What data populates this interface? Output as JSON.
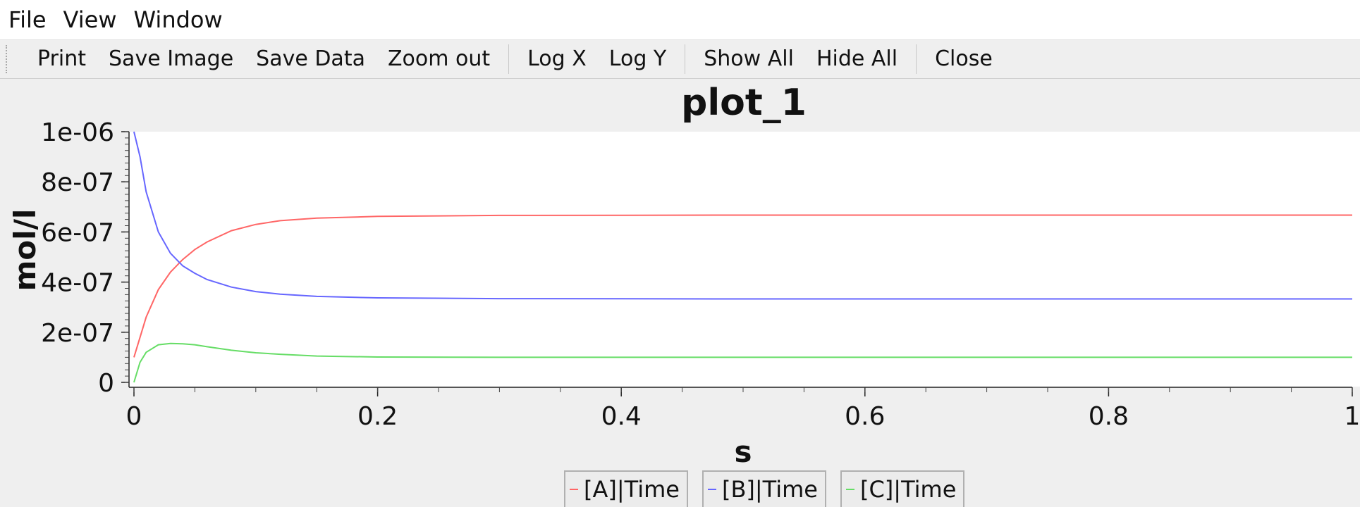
{
  "menu": {
    "items": [
      "File",
      "View",
      "Window"
    ]
  },
  "toolbar": {
    "print": "Print",
    "save_image": "Save Image",
    "save_data": "Save Data",
    "zoom_out": "Zoom out",
    "log_x": "Log X",
    "log_y": "Log Y",
    "show_all": "Show All",
    "hide_all": "Hide All",
    "close": "Close"
  },
  "chart_data": {
    "type": "line",
    "title": "plot_1",
    "xlabel": "s",
    "ylabel": "mol/l",
    "xlim": [
      0,
      1
    ],
    "ylim": [
      0,
      1e-06
    ],
    "x_ticks": [
      "0",
      "0.2",
      "0.4",
      "0.6",
      "0.8",
      "1"
    ],
    "y_ticks": [
      "0",
      "2e-07",
      "4e-07",
      "6e-07",
      "8e-07",
      "1e-06"
    ],
    "grid": false,
    "legend_position": "bottom",
    "series": [
      {
        "name": "[A]|Time",
        "color": "#ff6666",
        "x": [
          0,
          0.01,
          0.02,
          0.03,
          0.04,
          0.05,
          0.06,
          0.08,
          0.1,
          0.12,
          0.15,
          0.2,
          0.3,
          0.5,
          0.7,
          1.0
        ],
        "y": [
          1e-07,
          2.6e-07,
          3.7e-07,
          4.4e-07,
          4.9e-07,
          5.3e-07,
          5.6e-07,
          6.05e-07,
          6.3e-07,
          6.45e-07,
          6.55e-07,
          6.62e-07,
          6.66e-07,
          6.67e-07,
          6.67e-07,
          6.67e-07
        ]
      },
      {
        "name": "[B]|Time",
        "color": "#6666ff",
        "x": [
          0,
          0.005,
          0.01,
          0.02,
          0.03,
          0.04,
          0.05,
          0.06,
          0.08,
          0.1,
          0.12,
          0.15,
          0.2,
          0.3,
          0.5,
          0.7,
          1.0
        ],
        "y": [
          1e-06,
          9e-07,
          7.6e-07,
          6e-07,
          5.15e-07,
          4.65e-07,
          4.35e-07,
          4.1e-07,
          3.8e-07,
          3.62e-07,
          3.52e-07,
          3.43e-07,
          3.37e-07,
          3.34e-07,
          3.33e-07,
          3.33e-07,
          3.33e-07
        ]
      },
      {
        "name": "[C]|Time",
        "color": "#66dd66",
        "x": [
          0,
          0.005,
          0.01,
          0.02,
          0.03,
          0.04,
          0.05,
          0.06,
          0.08,
          0.1,
          0.12,
          0.15,
          0.2,
          0.3,
          0.5,
          1.0
        ],
        "y": [
          0,
          8e-08,
          1.2e-07,
          1.5e-07,
          1.55e-07,
          1.54e-07,
          1.5e-07,
          1.42e-07,
          1.28e-07,
          1.18e-07,
          1.12e-07,
          1.05e-07,
          1.01e-07,
          1e-07,
          1e-07,
          1e-07
        ]
      }
    ]
  }
}
